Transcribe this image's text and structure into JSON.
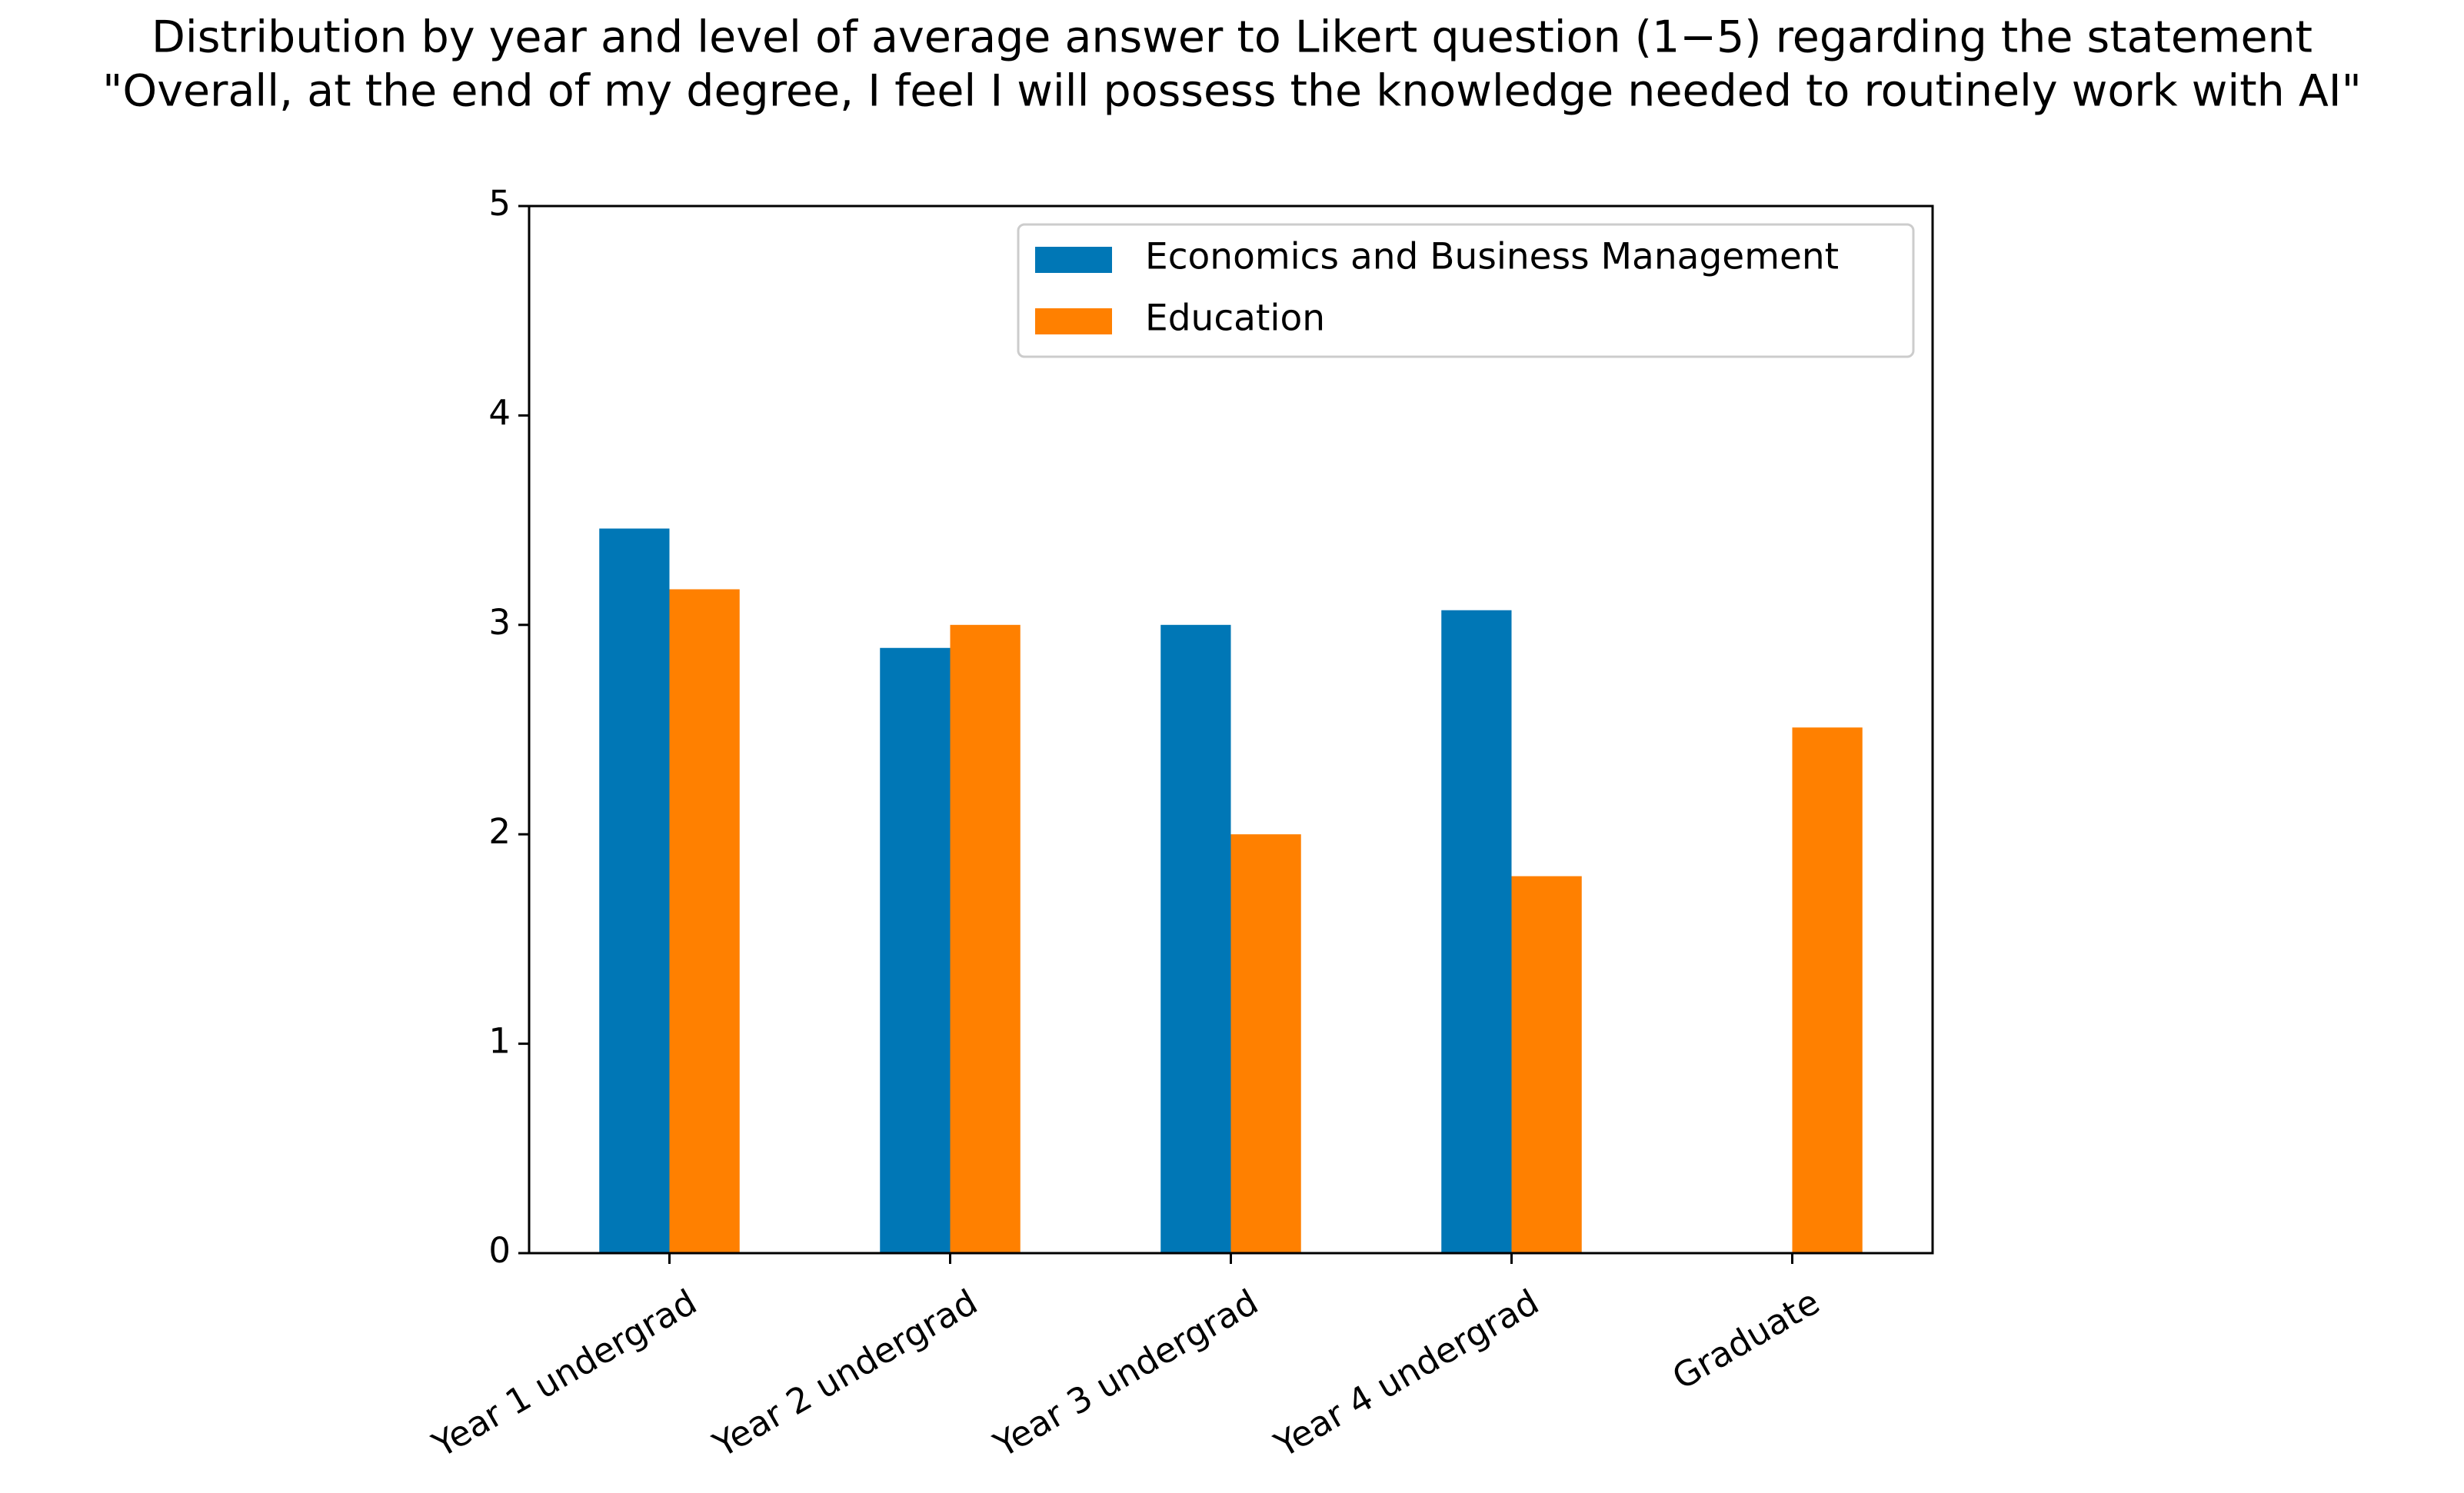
{
  "chart_data": {
    "type": "bar",
    "title": "Distribution by year and level of average answer to Likert question (1−5) regarding the statement",
    "subtitle": "\"Overall, at the end of my degree, I feel I will possess the knowledge needed to routinely work with AI\"",
    "categories": [
      "Year 1 undergrad",
      "Year 2 undergrad",
      "Year 3 undergrad",
      "Year 4 undergrad",
      "Graduate"
    ],
    "series": [
      {
        "name": "Economics and Business Management",
        "color": "#0077b6",
        "values": [
          3.46,
          2.89,
          3.0,
          3.07,
          null
        ]
      },
      {
        "name": "Education",
        "color": "#ff8000",
        "values": [
          3.17,
          3.0,
          2.0,
          1.8,
          2.51
        ]
      }
    ],
    "ylim": [
      0,
      5
    ],
    "yticks": [
      0,
      1,
      2,
      3,
      4,
      5
    ],
    "grid": false,
    "legend": "upper right"
  }
}
